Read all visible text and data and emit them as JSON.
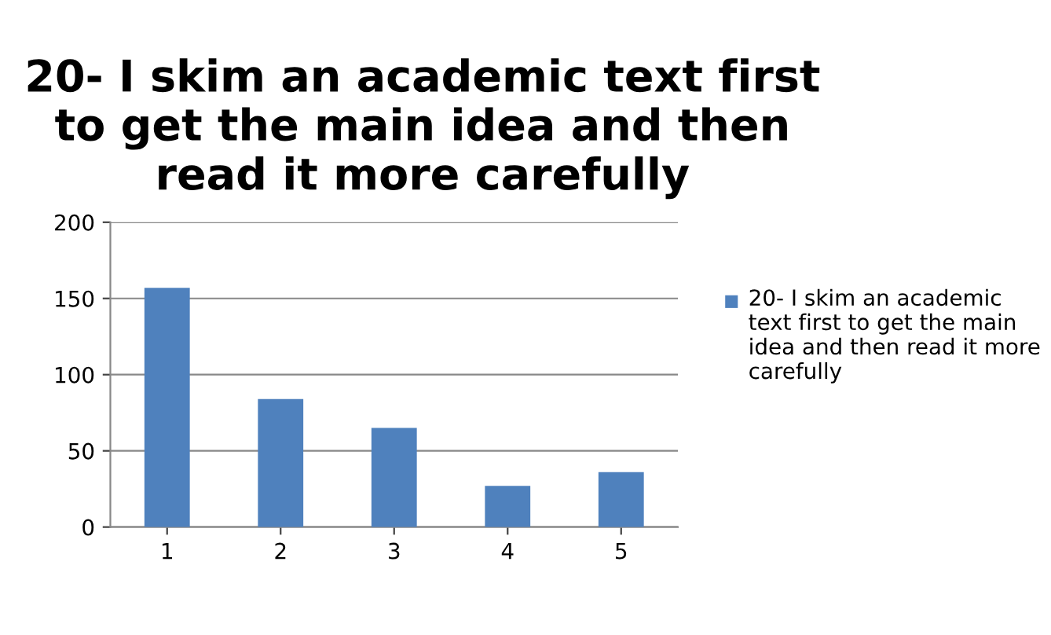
{
  "chart_data": {
    "type": "bar",
    "title": "20- I skim an academic text first to get the main idea and then read it more carefully",
    "categories": [
      "1",
      "2",
      "3",
      "4",
      "5"
    ],
    "series": [
      {
        "name": "20- I skim an academic text first to get the main idea and then read it more carefully",
        "color": "#4f81bd",
        "values": [
          157,
          84,
          65,
          27,
          36
        ]
      }
    ],
    "ylim": [
      0,
      200
    ],
    "yticks": [
      0,
      50,
      100,
      150,
      200
    ],
    "grid": "y",
    "legend": "right"
  }
}
